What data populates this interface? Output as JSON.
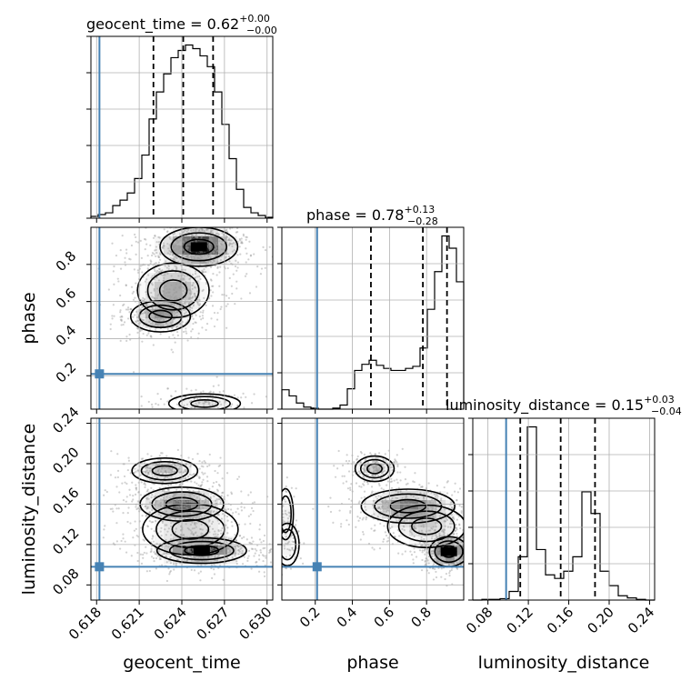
{
  "chart_data": {
    "type": "corner",
    "parameters": [
      "geocent_time",
      "phase",
      "luminosity_distance"
    ],
    "truths": {
      "geocent_time": 0.6182,
      "phase": 0.21,
      "luminosity_distance": 0.098
    },
    "titles": {
      "geocent_time": {
        "name": "geocent_time",
        "median": "0.62",
        "plus": "+0.00",
        "minus": "−0.00"
      },
      "phase": {
        "name": "phase",
        "median": "0.78",
        "plus": "+0.13",
        "minus": "−0.28"
      },
      "luminosity_distance": {
        "name": "luminosity_distance",
        "median": "0.15",
        "plus": "+0.03",
        "minus": "−0.04"
      }
    },
    "axes": {
      "geocent_time": {
        "range": [
          0.6176,
          0.6304
        ],
        "ticks": [
          0.618,
          0.621,
          0.624,
          0.627,
          0.63
        ],
        "tick_labels": [
          "0.618",
          "0.621",
          "0.624",
          "0.627",
          "0.630"
        ],
        "label": "geocent_time"
      },
      "phase": {
        "range": [
          0.02,
          1.0
        ],
        "ticks": [
          0.2,
          0.4,
          0.6,
          0.8
        ],
        "tick_labels": [
          "0.2",
          "0.4",
          "0.6",
          "0.8"
        ],
        "label": "phase"
      },
      "luminosity_distance": {
        "range": [
          0.065,
          0.245
        ],
        "ticks": [
          0.08,
          0.12,
          0.16,
          0.2,
          0.24
        ],
        "tick_labels": [
          "0.08",
          "0.12",
          "0.16",
          "0.20",
          "0.24"
        ],
        "label": "luminosity_distance"
      }
    },
    "quantiles": {
      "geocent_time": [
        0.622,
        0.6241,
        0.6262
      ],
      "phase": [
        0.5,
        0.78,
        0.91
      ],
      "luminosity_distance": [
        0.112,
        0.152,
        0.186
      ]
    },
    "histograms": {
      "geocent_time": {
        "edges_range": [
          0.6176,
          0.6304
        ],
        "counts": [
          2,
          4,
          6,
          14,
          20,
          28,
          44,
          70,
          110,
          140,
          160,
          178,
          186,
          192,
          188,
          180,
          168,
          140,
          104,
          66,
          32,
          12,
          6,
          3,
          1
        ]
      },
      "phase": {
        "edges_range": [
          0.02,
          1.0
        ],
        "counts": [
          19,
          13,
          6,
          2,
          1,
          0,
          0,
          1,
          4,
          20,
          38,
          44,
          48,
          43,
          40,
          38,
          38,
          40,
          42,
          60,
          98,
          135,
          170,
          158,
          125
        ]
      },
      "luminosity_distance": {
        "edges_range": [
          0.065,
          0.245
        ],
        "counts": [
          0,
          1,
          1,
          2,
          12,
          60,
          240,
          70,
          35,
          30,
          40,
          60,
          150,
          120,
          40,
          20,
          6,
          3,
          1,
          0
        ]
      }
    },
    "scatter_note": "2D panels show density contours and scattered samples"
  }
}
